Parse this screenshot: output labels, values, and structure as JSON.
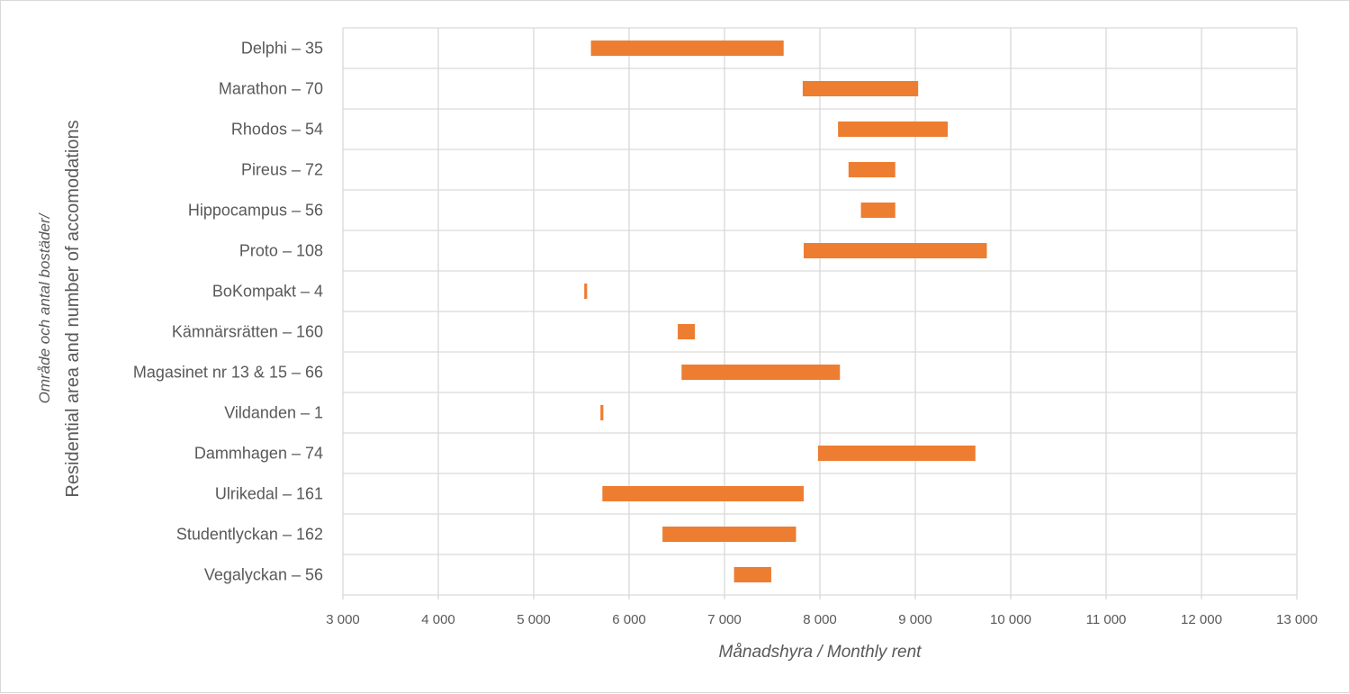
{
  "chart_data": {
    "type": "bar",
    "orientation": "horizontal",
    "subtype": "floating-range",
    "categories": [
      "Delphi – 35",
      "Marathon – 70",
      "Rhodos – 54",
      "Pireus – 72",
      "Hippocampus – 56",
      "Proto – 108",
      "BoKompakt – 4",
      "Kämnärsrätten – 160",
      "Magasinet nr 13 & 15 – 66",
      "Vildanden – 1",
      "Dammhagen – 74",
      "Ulrikedal – 161",
      "Studentlyckan – 162",
      "Vegalyckan – 56"
    ],
    "series": [
      {
        "ranges": [
          [
            5600,
            7620
          ],
          [
            7820,
            9030
          ],
          [
            8190,
            9340
          ],
          [
            8300,
            8790
          ],
          [
            8430,
            8790
          ],
          [
            7830,
            9750
          ],
          [
            5530,
            5560
          ],
          [
            6510,
            6690
          ],
          [
            6550,
            8210
          ],
          [
            5700,
            5730
          ],
          [
            7980,
            9630
          ],
          [
            5720,
            7830
          ],
          [
            6350,
            7750
          ],
          [
            7100,
            7490
          ]
        ]
      }
    ],
    "xlim": [
      3000,
      13000
    ],
    "xticks": [
      3000,
      4000,
      5000,
      6000,
      7000,
      8000,
      9000,
      10000,
      11000,
      12000,
      13000
    ],
    "xtick_labels": [
      "3 000",
      "4 000",
      "5 000",
      "6 000",
      "7 000",
      "8 000",
      "9 000",
      "10 000",
      "11 000",
      "12 000",
      "13 000"
    ],
    "xlabel": "Månadshyra / Monthly rent",
    "ylabel_line1": "Område och antal bostäder/",
    "ylabel_line2": "Residential area and number of accomodations",
    "grid": "vertical and horizontal",
    "legend": "none",
    "bar_color": "#ed7d31",
    "grid_color": "#d9d9d9",
    "text_color": "#595959"
  }
}
